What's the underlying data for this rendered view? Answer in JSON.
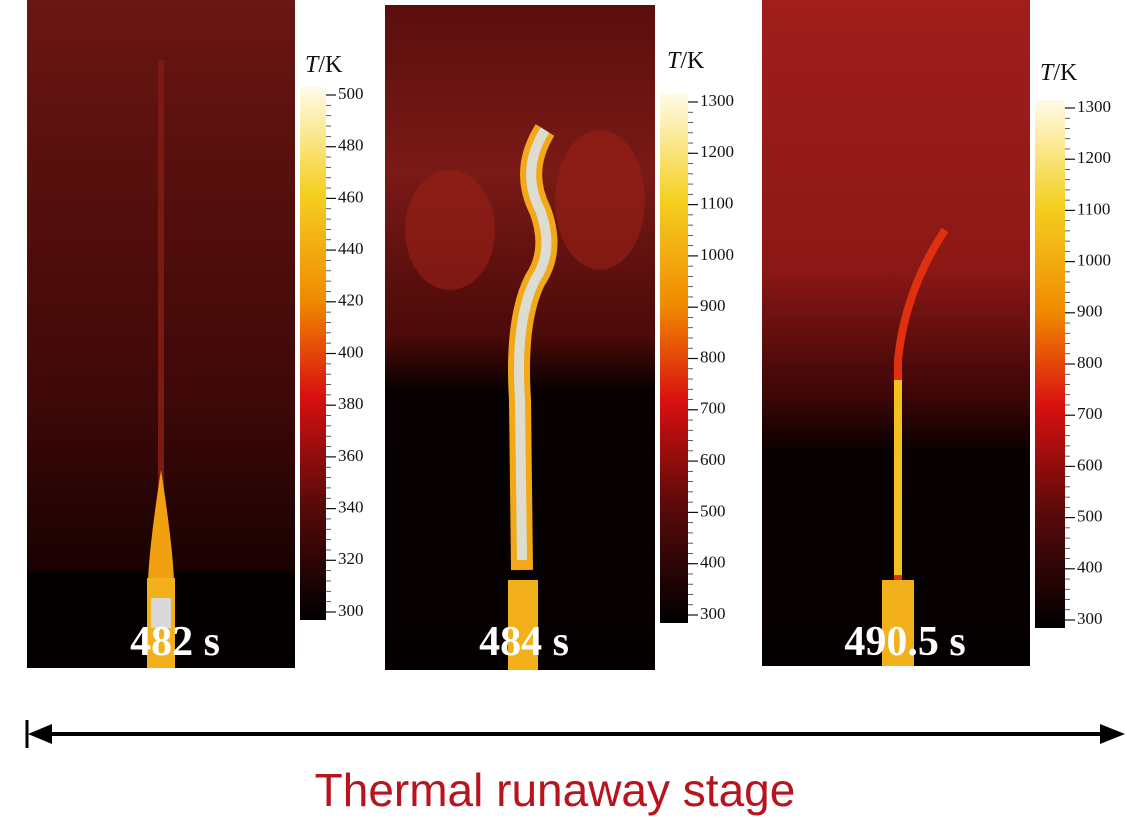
{
  "panels": [
    {
      "time_label": "482 s",
      "colorbar": {
        "symbol": "T",
        "unit": "/K",
        "ticks": [
          300,
          320,
          340,
          360,
          380,
          400,
          420,
          440,
          460,
          480,
          500
        ]
      }
    },
    {
      "time_label": "484 s",
      "colorbar": {
        "symbol": "T",
        "unit": "/K",
        "ticks": [
          300,
          400,
          500,
          600,
          700,
          800,
          900,
          1000,
          1100,
          1200,
          1300
        ]
      }
    },
    {
      "time_label": "490.5 s",
      "colorbar": {
        "symbol": "T",
        "unit": "/K",
        "ticks": [
          300,
          400,
          500,
          600,
          700,
          800,
          900,
          1000,
          1100,
          1200,
          1300
        ]
      }
    }
  ],
  "caption": "Thermal runaway stage"
}
